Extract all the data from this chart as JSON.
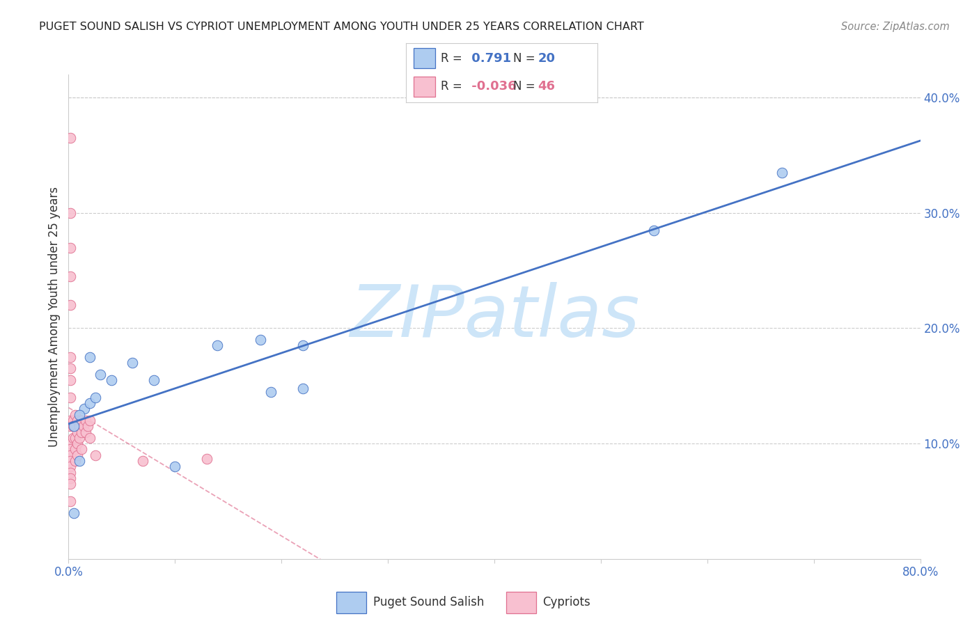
{
  "title": "PUGET SOUND SALISH VS CYPRIOT UNEMPLOYMENT AMONG YOUTH UNDER 25 YEARS CORRELATION CHART",
  "source": "Source: ZipAtlas.com",
  "ylabel": "Unemployment Among Youth under 25 years",
  "xlim": [
    0.0,
    0.8
  ],
  "ylim": [
    0.0,
    0.42
  ],
  "blue_label": "Puget Sound Salish",
  "pink_label": "Cypriots",
  "blue_R": "0.791",
  "blue_N": "20",
  "pink_R": "-0.036",
  "pink_N": "46",
  "blue_fill_color": "#aeccf0",
  "blue_edge_color": "#4472c4",
  "pink_fill_color": "#f8c0d0",
  "pink_edge_color": "#e07090",
  "watermark_color": "#cde5f8",
  "grid_color": "#cccccc",
  "title_color": "#222222",
  "axis_tick_color": "#4472c4",
  "legend_text_color": "#333333",
  "blue_scatter_x": [
    0.005,
    0.01,
    0.015,
    0.02,
    0.02,
    0.025,
    0.03,
    0.04,
    0.06,
    0.08,
    0.1,
    0.14,
    0.18,
    0.19,
    0.22,
    0.22,
    0.55,
    0.67,
    0.005,
    0.01
  ],
  "blue_scatter_y": [
    0.115,
    0.085,
    0.13,
    0.135,
    0.175,
    0.14,
    0.16,
    0.155,
    0.17,
    0.155,
    0.08,
    0.185,
    0.19,
    0.145,
    0.185,
    0.148,
    0.285,
    0.335,
    0.04,
    0.125
  ],
  "pink_scatter_x": [
    0.002,
    0.002,
    0.002,
    0.002,
    0.002,
    0.002,
    0.002,
    0.002,
    0.002,
    0.002,
    0.002,
    0.002,
    0.002,
    0.002,
    0.002,
    0.002,
    0.002,
    0.002,
    0.002,
    0.002,
    0.004,
    0.004,
    0.004,
    0.006,
    0.006,
    0.006,
    0.006,
    0.006,
    0.008,
    0.008,
    0.008,
    0.008,
    0.01,
    0.01,
    0.012,
    0.012,
    0.012,
    0.014,
    0.016,
    0.016,
    0.018,
    0.02,
    0.02,
    0.025,
    0.07,
    0.13
  ],
  "pink_scatter_y": [
    0.365,
    0.3,
    0.27,
    0.245,
    0.22,
    0.175,
    0.165,
    0.155,
    0.14,
    0.12,
    0.115,
    0.1,
    0.095,
    0.09,
    0.085,
    0.08,
    0.075,
    0.07,
    0.065,
    0.05,
    0.12,
    0.115,
    0.105,
    0.125,
    0.115,
    0.105,
    0.095,
    0.085,
    0.12,
    0.11,
    0.1,
    0.09,
    0.115,
    0.105,
    0.12,
    0.11,
    0.095,
    0.115,
    0.12,
    0.11,
    0.115,
    0.12,
    0.105,
    0.09,
    0.085,
    0.087
  ],
  "blue_trendline_x": [
    0.0,
    0.8
  ],
  "pink_trendline_x": [
    0.0,
    0.32
  ]
}
